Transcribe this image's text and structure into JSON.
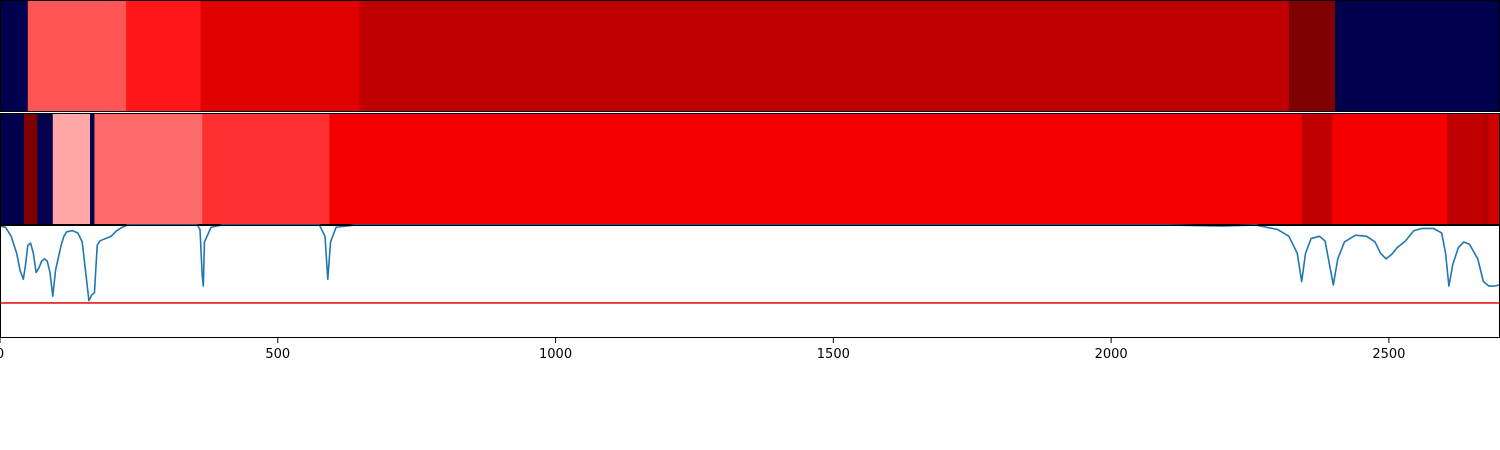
{
  "chart_data": {
    "type": "heatmap",
    "x_range": [
      0,
      2700
    ],
    "x_ticks": [
      0,
      500,
      1000,
      1500,
      2000,
      2500
    ],
    "x_tick_labels": [
      "0",
      "500",
      "1000",
      "1500",
      "2000",
      "2500"
    ],
    "band_rows": [
      {
        "name": "",
        "segments": [
          {
            "start": 0,
            "end": 50,
            "color": "#00004c"
          },
          {
            "start": 50,
            "end": 227,
            "color": "#ff5555"
          },
          {
            "start": 227,
            "end": 361,
            "color": "#ff1616"
          },
          {
            "start": 361,
            "end": 647,
            "color": "#e10000"
          },
          {
            "start": 647,
            "end": 2320,
            "color": "#c00000"
          },
          {
            "start": 2320,
            "end": 2403,
            "color": "#7f0000"
          },
          {
            "start": 2403,
            "end": 2700,
            "color": "#00004c"
          }
        ]
      },
      {
        "name": "",
        "segments": [
          {
            "start": 0,
            "end": 43,
            "color": "#00004c"
          },
          {
            "start": 43,
            "end": 67,
            "color": "#7f0000"
          },
          {
            "start": 67,
            "end": 95,
            "color": "#00004c"
          },
          {
            "start": 95,
            "end": 162,
            "color": "#ffa6a6"
          },
          {
            "start": 162,
            "end": 170,
            "color": "#00004c"
          },
          {
            "start": 170,
            "end": 364,
            "color": "#ff6a6a"
          },
          {
            "start": 364,
            "end": 593,
            "color": "#ff3030"
          },
          {
            "start": 593,
            "end": 2343,
            "color": "#f50000"
          },
          {
            "start": 2343,
            "end": 2398,
            "color": "#c00000"
          },
          {
            "start": 2398,
            "end": 2605,
            "color": "#f50000"
          },
          {
            "start": 2605,
            "end": 2670,
            "color": "#c00000"
          },
          {
            "start": 2670,
            "end": 2680,
            "color": "#b00000"
          },
          {
            "start": 2680,
            "end": 2700,
            "color": "#d00000"
          }
        ]
      }
    ],
    "line_panel": {
      "y_range": [
        0,
        1
      ],
      "threshold": 0.31,
      "threshold_color": "#e31a1c",
      "series": [
        {
          "name": "",
          "color": "#1f77b4",
          "points": [
            [
              0,
              0.99
            ],
            [
              10,
              0.98
            ],
            [
              20,
              0.9
            ],
            [
              30,
              0.75
            ],
            [
              36,
              0.6
            ],
            [
              42,
              0.52
            ],
            [
              46,
              0.65
            ],
            [
              50,
              0.82
            ],
            [
              55,
              0.84
            ],
            [
              60,
              0.75
            ],
            [
              65,
              0.58
            ],
            [
              70,
              0.62
            ],
            [
              75,
              0.68
            ],
            [
              80,
              0.7
            ],
            [
              85,
              0.68
            ],
            [
              90,
              0.58
            ],
            [
              95,
              0.37
            ],
            [
              100,
              0.6
            ],
            [
              110,
              0.82
            ],
            [
              115,
              0.9
            ],
            [
              120,
              0.94
            ],
            [
              130,
              0.95
            ],
            [
              140,
              0.93
            ],
            [
              148,
              0.85
            ],
            [
              155,
              0.55
            ],
            [
              160,
              0.33
            ],
            [
              165,
              0.38
            ],
            [
              170,
              0.4
            ],
            [
              175,
              0.82
            ],
            [
              180,
              0.86
            ],
            [
              190,
              0.88
            ],
            [
              200,
              0.9
            ],
            [
              210,
              0.95
            ],
            [
              220,
              0.98
            ],
            [
              230,
              1.0
            ],
            [
              355,
              1.0
            ],
            [
              360,
              0.96
            ],
            [
              364,
              0.55
            ],
            [
              366,
              0.46
            ],
            [
              368,
              0.85
            ],
            [
              380,
              0.98
            ],
            [
              400,
              1.0
            ],
            [
              575,
              1.0
            ],
            [
              585,
              0.9
            ],
            [
              590,
              0.52
            ],
            [
              595,
              0.85
            ],
            [
              605,
              0.98
            ],
            [
              640,
              1.0
            ],
            [
              2100,
              1.0
            ],
            [
              2200,
              0.99
            ],
            [
              2260,
              1.0
            ],
            [
              2300,
              0.96
            ],
            [
              2320,
              0.9
            ],
            [
              2335,
              0.75
            ],
            [
              2343,
              0.5
            ],
            [
              2350,
              0.75
            ],
            [
              2360,
              0.88
            ],
            [
              2375,
              0.9
            ],
            [
              2385,
              0.86
            ],
            [
              2395,
              0.6
            ],
            [
              2400,
              0.47
            ],
            [
              2408,
              0.7
            ],
            [
              2420,
              0.85
            ],
            [
              2440,
              0.91
            ],
            [
              2460,
              0.9
            ],
            [
              2475,
              0.85
            ],
            [
              2485,
              0.75
            ],
            [
              2495,
              0.7
            ],
            [
              2505,
              0.74
            ],
            [
              2515,
              0.8
            ],
            [
              2530,
              0.86
            ],
            [
              2545,
              0.95
            ],
            [
              2560,
              0.97
            ],
            [
              2580,
              0.97
            ],
            [
              2595,
              0.93
            ],
            [
              2602,
              0.75
            ],
            [
              2608,
              0.46
            ],
            [
              2615,
              0.65
            ],
            [
              2625,
              0.8
            ],
            [
              2635,
              0.85
            ],
            [
              2645,
              0.83
            ],
            [
              2660,
              0.7
            ],
            [
              2670,
              0.5
            ],
            [
              2680,
              0.46
            ],
            [
              2690,
              0.46
            ],
            [
              2700,
              0.47
            ]
          ]
        }
      ]
    }
  }
}
